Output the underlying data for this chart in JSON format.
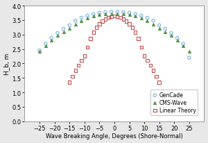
{
  "title": "",
  "xlabel": "Wave Breaking Angle, Degrees (Shore-Normal)",
  "ylabel": "H_b, m",
  "xlim": [
    -30,
    30
  ],
  "ylim": [
    0.0,
    4.0
  ],
  "xticks": [
    -25,
    -20,
    -15,
    -10,
    -5,
    0,
    5,
    10,
    15,
    20,
    25
  ],
  "yticks": [
    0.0,
    0.5,
    1.0,
    1.5,
    2.0,
    2.5,
    3.0,
    3.5,
    4.0
  ],
  "gencade_x": [
    -25,
    -23,
    -21,
    -19,
    -17,
    -15,
    -13,
    -11,
    -9,
    -7,
    -5,
    -3,
    -1,
    1,
    3,
    5,
    7,
    9,
    11,
    13,
    15,
    17,
    19,
    21,
    23,
    25
  ],
  "gencade_y": [
    2.45,
    2.68,
    2.88,
    3.05,
    3.2,
    3.32,
    3.48,
    3.58,
    3.65,
    3.71,
    3.75,
    3.77,
    3.79,
    3.79,
    3.77,
    3.75,
    3.71,
    3.65,
    3.58,
    3.48,
    3.32,
    3.2,
    3.05,
    2.88,
    2.68,
    2.2
  ],
  "cmwave_x": [
    -25,
    -23,
    -21,
    -19,
    -17,
    -15,
    -13,
    -11,
    -9,
    -7,
    -5,
    -3,
    -1,
    1,
    3,
    5,
    7,
    9,
    11,
    13,
    15,
    17,
    19,
    21,
    23,
    25
  ],
  "cmwave_y": [
    2.42,
    2.6,
    2.8,
    2.96,
    3.1,
    3.22,
    3.36,
    3.47,
    3.56,
    3.63,
    3.68,
    3.71,
    3.72,
    3.72,
    3.71,
    3.68,
    3.63,
    3.56,
    3.47,
    3.36,
    3.22,
    3.1,
    2.96,
    2.8,
    2.6,
    2.42
  ],
  "linear_x": [
    -15,
    -14,
    -13,
    -12,
    -11,
    -10,
    -9,
    -8,
    -7,
    -6,
    -5,
    -4,
    -3,
    -2,
    -1,
    0,
    1,
    2,
    3,
    4,
    5,
    6,
    7,
    8,
    9,
    10,
    11,
    12,
    13,
    14,
    15
  ],
  "linear_y": [
    1.35,
    1.55,
    1.76,
    1.94,
    2.1,
    2.26,
    2.56,
    2.86,
    3.08,
    3.25,
    3.37,
    3.46,
    3.53,
    3.59,
    3.62,
    3.64,
    3.62,
    3.59,
    3.53,
    3.46,
    3.37,
    3.25,
    3.08,
    2.86,
    2.56,
    2.26,
    2.1,
    1.94,
    1.76,
    1.55,
    1.35
  ],
  "gencade_color": "#7ab0d4",
  "cmwave_color": "#4a8f3f",
  "linear_color": "#c0504d",
  "background_color": "#e8e8e8",
  "plot_bg_color": "#ffffff"
}
